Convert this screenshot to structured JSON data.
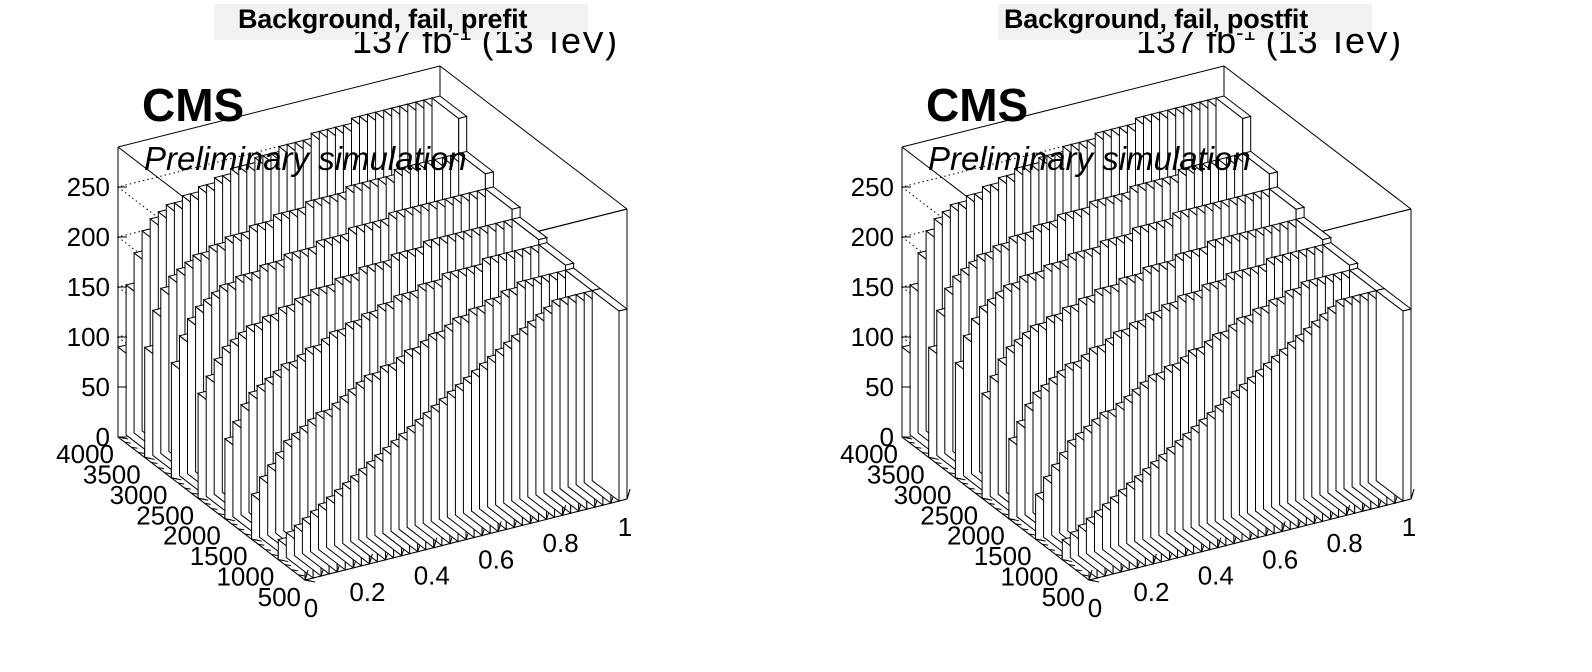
{
  "figure": {
    "cms_label": "CMS",
    "status_label": "Preliminary simulation",
    "lumi_text": "137 fb",
    "lumi_sup": "-1",
    "lumi_energy": "(13 TeV)",
    "colors": {
      "fill": "#ffffff",
      "edge": "#000000",
      "title_box": "#f2f2f2"
    }
  },
  "chart_data": [
    {
      "type": "bar3d",
      "title": "Background, fail, prefit",
      "x_axis": {
        "range": [
          0,
          1
        ],
        "ticks": [
          "0",
          "0.2",
          "0.4",
          "0.6",
          "0.8",
          "1"
        ]
      },
      "y_axis": {
        "range": [
          500,
          4000
        ],
        "ticks": [
          "500",
          "1000",
          "1500",
          "2000",
          "2500",
          "3000",
          "3500",
          "4000"
        ]
      },
      "z_axis": {
        "range": [
          0,
          290
        ],
        "ticks": [
          "0",
          "50",
          "100",
          "150",
          "200",
          "250"
        ]
      },
      "grid": true,
      "rows": [
        {
          "y": 750,
          "values": [
            20,
            25,
            30,
            35,
            40,
            45,
            50,
            55,
            60,
            65,
            70,
            75,
            80,
            85,
            90,
            95,
            100,
            105,
            110,
            115,
            120,
            125,
            130,
            135,
            140,
            145,
            150,
            155,
            160,
            165,
            170,
            175,
            180,
            185,
            190,
            190,
            190,
            190,
            190,
            190
          ]
        },
        {
          "y": 1250,
          "values": [
            45,
            60,
            70,
            80,
            90,
            95,
            100,
            105,
            110,
            110,
            115,
            120,
            125,
            130,
            135,
            135,
            140,
            140,
            145,
            150,
            150,
            155,
            160,
            160,
            165,
            170,
            170,
            175,
            175,
            180,
            180,
            185,
            185,
            190,
            190,
            190,
            190,
            190,
            190,
            190
          ]
        },
        {
          "y": 1750,
          "values": [
            80,
            95,
            110,
            120,
            125,
            130,
            135,
            140,
            140,
            145,
            150,
            150,
            155,
            160,
            160,
            165,
            165,
            170,
            170,
            175,
            175,
            180,
            180,
            180,
            185,
            185,
            185,
            190,
            190,
            190,
            190,
            190,
            195,
            195,
            195,
            195,
            195,
            195,
            195,
            195
          ]
        },
        {
          "y": 2250,
          "values": [
            105,
            120,
            135,
            145,
            150,
            155,
            160,
            160,
            165,
            165,
            170,
            170,
            175,
            175,
            180,
            180,
            180,
            185,
            185,
            185,
            190,
            190,
            190,
            190,
            195,
            195,
            195,
            195,
            200,
            200,
            200,
            200,
            200,
            200,
            200,
            200,
            200,
            200,
            200,
            200
          ]
        },
        {
          "y": 2750,
          "values": [
            115,
            140,
            155,
            165,
            170,
            175,
            180,
            180,
            185,
            185,
            185,
            190,
            190,
            190,
            195,
            195,
            195,
            195,
            200,
            200,
            200,
            200,
            205,
            205,
            205,
            205,
            205,
            210,
            210,
            210,
            210,
            210,
            210,
            210,
            210,
            210,
            210,
            210,
            210,
            210
          ]
        },
        {
          "y": 3250,
          "values": [
            110,
            145,
            165,
            175,
            180,
            185,
            190,
            190,
            195,
            195,
            200,
            200,
            200,
            205,
            205,
            205,
            210,
            210,
            210,
            210,
            215,
            215,
            215,
            215,
            215,
            220,
            220,
            220,
            220,
            220,
            220,
            225,
            225,
            225,
            225,
            225,
            225,
            225,
            225,
            225
          ]
        },
        {
          "y": 3750,
          "values": [
            90,
            150,
            180,
            200,
            210,
            215,
            220,
            220,
            225,
            225,
            230,
            230,
            235,
            235,
            240,
            240,
            240,
            245,
            245,
            245,
            250,
            250,
            250,
            250,
            255,
            255,
            255,
            255,
            255,
            260,
            260,
            260,
            260,
            260,
            260,
            260,
            260,
            260,
            260,
            260
          ]
        }
      ]
    },
    {
      "type": "bar3d",
      "title": "Background, fail, postfit",
      "x_axis": {
        "range": [
          0,
          1
        ],
        "ticks": [
          "0",
          "0.2",
          "0.4",
          "0.6",
          "0.8",
          "1"
        ]
      },
      "y_axis": {
        "range": [
          500,
          4000
        ],
        "ticks": [
          "500",
          "1000",
          "1500",
          "2000",
          "2500",
          "3000",
          "3500",
          "4000"
        ]
      },
      "z_axis": {
        "range": [
          0,
          290
        ],
        "ticks": [
          "0",
          "50",
          "100",
          "150",
          "200",
          "250"
        ]
      },
      "grid": true,
      "rows": [
        {
          "y": 750,
          "values": [
            20,
            25,
            30,
            35,
            40,
            45,
            50,
            55,
            60,
            65,
            70,
            75,
            80,
            85,
            90,
            95,
            100,
            105,
            110,
            115,
            120,
            125,
            130,
            135,
            140,
            145,
            150,
            155,
            160,
            165,
            170,
            175,
            180,
            185,
            190,
            190,
            190,
            190,
            190,
            190
          ]
        },
        {
          "y": 1250,
          "values": [
            45,
            60,
            70,
            80,
            90,
            95,
            100,
            105,
            110,
            110,
            115,
            120,
            125,
            130,
            135,
            135,
            140,
            140,
            145,
            150,
            150,
            155,
            160,
            160,
            165,
            170,
            170,
            175,
            175,
            180,
            180,
            185,
            185,
            190,
            190,
            190,
            190,
            190,
            190,
            190
          ]
        },
        {
          "y": 1750,
          "values": [
            80,
            95,
            110,
            120,
            125,
            130,
            135,
            140,
            140,
            145,
            150,
            150,
            155,
            160,
            160,
            165,
            165,
            170,
            170,
            175,
            175,
            180,
            180,
            180,
            185,
            185,
            185,
            190,
            190,
            190,
            190,
            190,
            195,
            195,
            195,
            195,
            195,
            195,
            195,
            195
          ]
        },
        {
          "y": 2250,
          "values": [
            105,
            120,
            135,
            145,
            150,
            155,
            160,
            160,
            165,
            165,
            170,
            170,
            175,
            175,
            180,
            180,
            180,
            185,
            185,
            185,
            190,
            190,
            190,
            190,
            195,
            195,
            195,
            195,
            200,
            200,
            200,
            200,
            200,
            200,
            200,
            200,
            200,
            200,
            200,
            200
          ]
        },
        {
          "y": 2750,
          "values": [
            115,
            140,
            155,
            165,
            170,
            175,
            180,
            180,
            185,
            185,
            185,
            190,
            190,
            190,
            195,
            195,
            195,
            195,
            200,
            200,
            200,
            200,
            205,
            205,
            205,
            205,
            205,
            210,
            210,
            210,
            210,
            210,
            210,
            210,
            210,
            210,
            210,
            210,
            210,
            210
          ]
        },
        {
          "y": 3250,
          "values": [
            110,
            145,
            165,
            175,
            180,
            185,
            190,
            190,
            195,
            195,
            200,
            200,
            200,
            205,
            205,
            205,
            210,
            210,
            210,
            210,
            215,
            215,
            215,
            215,
            215,
            220,
            220,
            220,
            220,
            220,
            220,
            225,
            225,
            225,
            225,
            225,
            225,
            225,
            225,
            225
          ]
        },
        {
          "y": 3750,
          "values": [
            90,
            150,
            180,
            200,
            210,
            215,
            220,
            220,
            225,
            225,
            230,
            230,
            235,
            235,
            240,
            240,
            240,
            245,
            245,
            245,
            250,
            250,
            250,
            250,
            255,
            255,
            255,
            255,
            255,
            260,
            260,
            260,
            260,
            260,
            260,
            260,
            260,
            260,
            260,
            260
          ]
        }
      ]
    }
  ]
}
